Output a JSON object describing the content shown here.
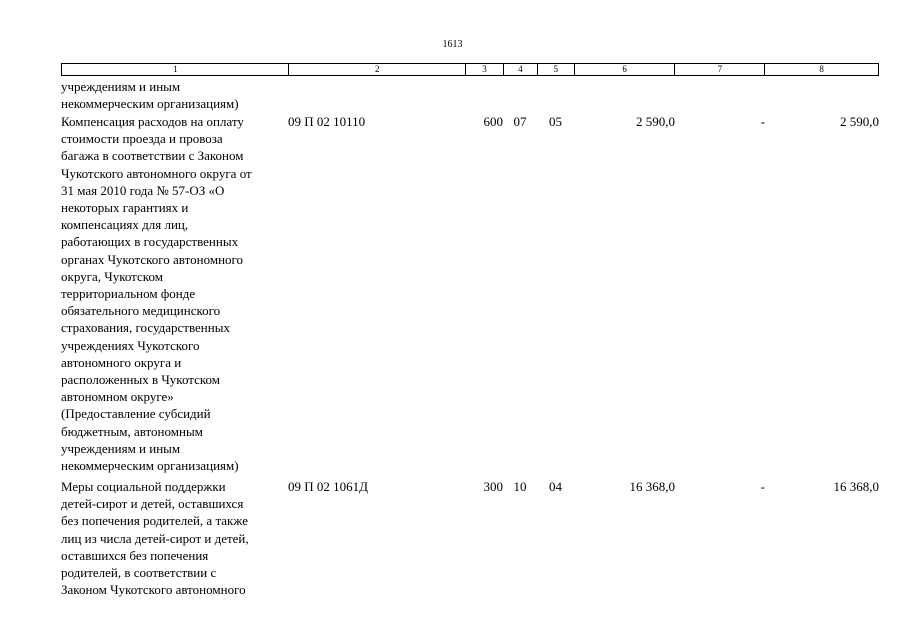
{
  "page_number": "1613",
  "headers": [
    "1",
    "2",
    "3",
    "4",
    "5",
    "6",
    "7",
    "8"
  ],
  "rows": [
    {
      "desc": "учреждениям и иным\nнекоммерческим организациям)",
      "code": "",
      "vr": "",
      "rz": "",
      "pr": "",
      "sum1": "",
      "sum2": "",
      "sum3": ""
    },
    {
      "desc": "Компенсация расходов на оплату\nстоимости проезда и провоза\nбагажа в соответствии с Законом\nЧукотского автономного округа от\n31 мая 2010 года № 57-ОЗ «О\nнекоторых гарантиях и\nкомпенсациях для лиц,\nработающих в государственных\nорганах Чукотского автономного\nокруга, Чукотском\nтерриториальном фонде\nобязательного медицинского\nстрахования, государственных\nучреждениях Чукотского\nавтономного округа и\nрасположенных в Чукотском\nавтономном округе»\n(Предоставление субсидий\nбюджетным, автономным\nучреждениям и иным\nнекоммерческим организациям)",
      "code": "09 П 02 10110",
      "vr": "600",
      "rz": "07",
      "pr": "05",
      "sum1": "2 590,0",
      "sum2": "-",
      "sum3": "2 590,0"
    },
    {
      "desc": "Меры социальной поддержки\nдетей-сирот и детей, оставшихся\nбез попечения родителей, а также\nлиц из числа детей-сирот и детей,\nоставшихся без попечения\nродителей, в соответствии с\nЗаконом Чукотского автономного",
      "code": "09 П 02 1061Д",
      "vr": "300",
      "rz": "10",
      "pr": "04",
      "sum1": "16 368,0",
      "sum2": "-",
      "sum3": "16 368,0"
    }
  ]
}
